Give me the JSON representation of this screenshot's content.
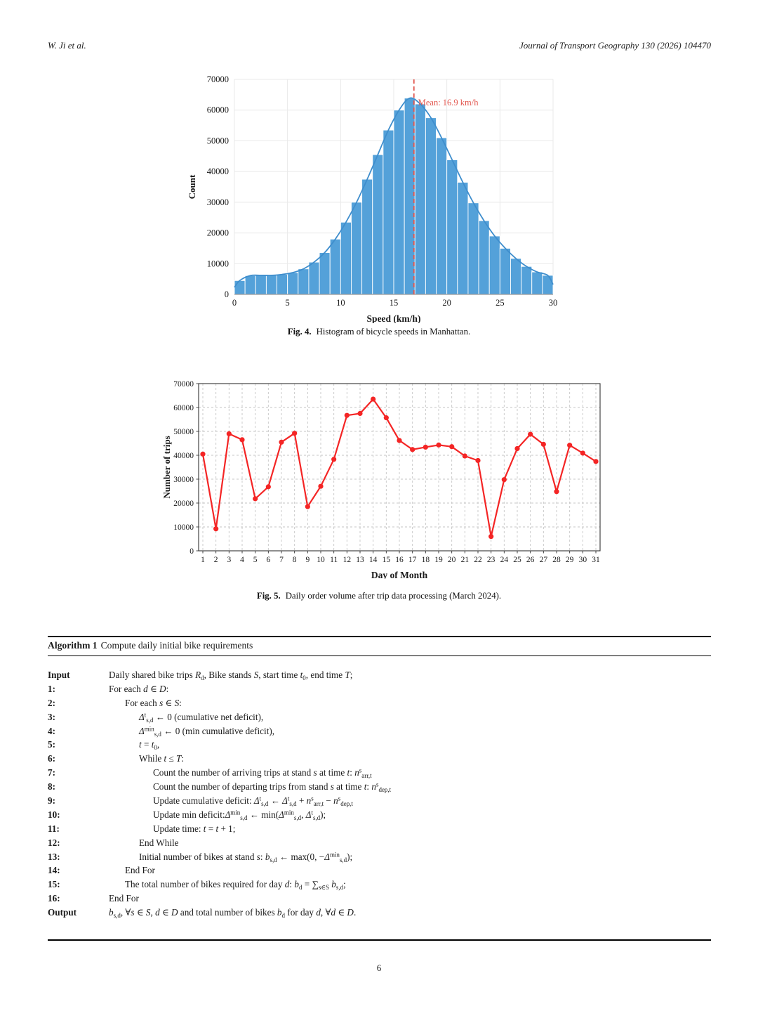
{
  "header": {
    "authors": "W. Ji et al.",
    "journal": "Journal of Transport Geography 130 (2026) 104470"
  },
  "figure4": {
    "caption_label": "Fig. 4.",
    "caption_text": "Histogram of bicycle speeds in Manhattan."
  },
  "figure5": {
    "caption_label": "Fig. 5.",
    "caption_text": "Daily order volume after trip data processing (March 2024)."
  },
  "algorithm": {
    "title_label": "Algorithm 1",
    "title_text": "Compute daily initial bike requirements",
    "lines": [
      {
        "label": "Input",
        "indent": 0,
        "text": "Daily shared bike trips *R*_{d}, Bike stands *S*, start time *t*_{0}, end time *T*;"
      },
      {
        "label": "1:",
        "indent": 0,
        "text": "For each *d* ∈ *D*:"
      },
      {
        "label": "2:",
        "indent": 1,
        "text": "For each *s* ∈ *S*:"
      },
      {
        "label": "3:",
        "indent": 2,
        "text": "*Δ*^{t}_{s,d} ← 0 (cumulative net deficit),"
      },
      {
        "label": "4:",
        "indent": 2,
        "text": "*Δ*^{min}_{s,d} ← 0 (min cumulative deficit),"
      },
      {
        "label": "5:",
        "indent": 2,
        "text": "*t* = *t*_{0},"
      },
      {
        "label": "6:",
        "indent": 2,
        "text": "While *t* ≤ *T*:"
      },
      {
        "label": "7:",
        "indent": 3,
        "text": "Count the number of arriving trips at stand *s* at time *t*: *n*^{s}_{arr,t}"
      },
      {
        "label": "8:",
        "indent": 3,
        "text": "Count the number of departing trips from stand *s* at time *t*: *n*^{s}_{dep,t}"
      },
      {
        "label": "9:",
        "indent": 3,
        "text": "Update cumulative deficit: *Δ*^{t}_{s,d} ← *Δ*^{t}_{s,d} + *n*^{s}_{arr,t} − *n*^{s}_{dep,t}"
      },
      {
        "label": "10:",
        "indent": 3,
        "text": "Update min deficit:*Δ*^{min}_{s,d} ← min(*Δ*^{min}_{s,d}, *Δ*^{t}_{s,d});"
      },
      {
        "label": "11:",
        "indent": 3,
        "text": "Update time: *t* = *t* + 1;"
      },
      {
        "label": "12:",
        "indent": 2,
        "text": "End While"
      },
      {
        "label": "13:",
        "indent": 2,
        "text": "Initial number of bikes at stand *s*: *b*_{s,d} ← max(0, −*Δ*^{min}_{s,d});"
      },
      {
        "label": "14:",
        "indent": 1,
        "text": "End For"
      },
      {
        "label": "15:",
        "indent": 1,
        "text": "The total number of bikes required for day *d*: *b*_{d} = ∑_{s∈S} *b*_{s,d};"
      },
      {
        "label": "16:",
        "indent": 0,
        "text": "End For"
      },
      {
        "label": "Output",
        "indent": 0,
        "text": "*b*_{s,d}, ∀*s* ∈ *S*, *d* ∈ *D* and total number of bikes *b*_{d} for day *d*, ∀*d* ∈ *D*."
      }
    ]
  },
  "page_number": "6",
  "colors": {
    "hist_bar": "#54a1d9",
    "hist_curve": "#3f8ecd",
    "mean_red": "#e2574f",
    "line_red": "#f42525",
    "grid_light": "#e9e9e9",
    "grid_dashed": "#c6c6c6",
    "axis_dark": "#333333",
    "text": "#1a1a1a"
  },
  "chart_data": [
    {
      "type": "bar",
      "title": "",
      "xlabel": "Speed (km/h)",
      "ylabel": "Count",
      "xlim": [
        0,
        30
      ],
      "ylim": [
        0,
        70000
      ],
      "x_ticks": [
        0,
        5,
        10,
        15,
        20,
        25,
        30
      ],
      "y_ticks": [
        0,
        10000,
        20000,
        30000,
        40000,
        50000,
        60000,
        70000
      ],
      "bin_start": 0,
      "bin_width": 1,
      "values": [
        4500,
        6100,
        6200,
        6200,
        6500,
        7100,
        8300,
        10500,
        13600,
        18000,
        23500,
        30000,
        37500,
        45500,
        53500,
        60000,
        63900,
        62000,
        57500,
        51000,
        43800,
        36500,
        29800,
        24000,
        19000,
        15000,
        11700,
        9100,
        7300,
        6200
      ],
      "kde_curve": true,
      "curve_ends": [
        2300,
        3200
      ],
      "mean_line": {
        "value": 16.9,
        "label": "Mean: 16.9 km/h"
      },
      "grid": "solid light, both axes",
      "legend_position": "none"
    },
    {
      "type": "line",
      "title": "",
      "xlabel": "Day of Month",
      "ylabel": "Number of trips",
      "x": [
        1,
        2,
        3,
        4,
        5,
        6,
        7,
        8,
        9,
        10,
        11,
        12,
        13,
        14,
        15,
        16,
        17,
        18,
        19,
        20,
        21,
        22,
        23,
        24,
        25,
        26,
        27,
        28,
        29,
        30,
        31
      ],
      "values": [
        40500,
        9200,
        49000,
        46500,
        21800,
        26800,
        45500,
        49200,
        18500,
        27000,
        38300,
        56700,
        57500,
        63500,
        55700,
        46200,
        42400,
        43400,
        44300,
        43600,
        39700,
        37800,
        6000,
        29800,
        42800,
        48800,
        44600,
        24800,
        44200,
        40900,
        37400
      ],
      "ylim": [
        0,
        70000
      ],
      "y_ticks": [
        0,
        10000,
        20000,
        30000,
        40000,
        50000,
        60000,
        70000
      ],
      "marker": "circle",
      "grid": "dashed, both axes, boxed frame",
      "legend_position": "none"
    }
  ]
}
